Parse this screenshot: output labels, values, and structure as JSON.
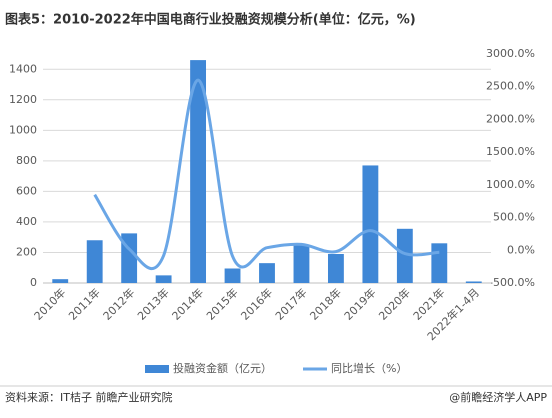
{
  "chart_data": {
    "type": "bar_line",
    "title": "图表5：2010-2022年中国电商行业投融资规模分析(单位：亿元，%)",
    "categories": [
      "2010年",
      "2011年",
      "2012年",
      "2013年",
      "2014年",
      "2015年",
      "2016年",
      "2017年",
      "2018年",
      "2019年",
      "2020年",
      "2021年",
      "2022年1-4月"
    ],
    "series": [
      {
        "name": "投融资金额（亿元）",
        "color": "#3f87d6",
        "type": "bar",
        "values": [
          25,
          280,
          325,
          50,
          1460,
          95,
          130,
          250,
          190,
          770,
          355,
          260,
          10
        ]
      },
      {
        "name": "同比增长（%）",
        "color": "#6aa6e6",
        "type": "line",
        "axis": "y2",
        "values": [
          null,
          850,
          20,
          -80,
          2600,
          -90,
          40,
          90,
          -20,
          300,
          -50,
          -30,
          null
        ]
      }
    ],
    "ylim": [
      0,
      1500
    ],
    "yticks": [
      0,
      200,
      400,
      600,
      800,
      1000,
      1200,
      1400
    ],
    "y2lim": [
      -500,
      3000
    ],
    "y2ticks": [
      {
        "value": -500,
        "label": "-500.0%"
      },
      {
        "value": 0,
        "label": "0.0%"
      },
      {
        "value": 500,
        "label": "500.0%"
      },
      {
        "value": 1000,
        "label": "1000.0%"
      },
      {
        "value": 1500,
        "label": "1500.0%"
      },
      {
        "value": 2000,
        "label": "2000.0%"
      },
      {
        "value": 2500,
        "label": "2500.0%"
      },
      {
        "value": 3000,
        "label": "3000.0%"
      }
    ],
    "grid": true,
    "source": "资料来源：IT桔子 前瞻产业研究院",
    "credit": "@前瞻经济学人APP"
  }
}
